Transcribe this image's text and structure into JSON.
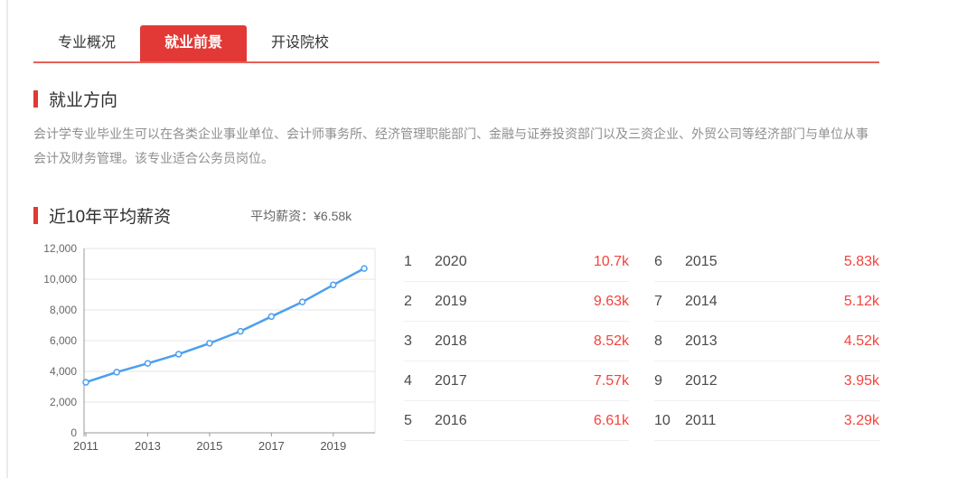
{
  "tabs": {
    "items": [
      {
        "label": "专业概况",
        "active": false
      },
      {
        "label": "就业前景",
        "active": true
      },
      {
        "label": "开设院校",
        "active": false
      }
    ]
  },
  "sections": {
    "employment_direction": {
      "title": "就业方向",
      "description": "会计学专业毕业生可以在各类企业事业单位、会计师事务所、经济管理职能部门、金融与证券投资部门以及三资企业、外贸公司等经济部门与单位从事会计及财务管理。该专业适合公务员岗位。"
    },
    "salary": {
      "title": "近10年平均薪资",
      "average_label": "平均薪资：¥6.58k"
    }
  },
  "chart_data": {
    "type": "line",
    "title": "近10年平均薪资",
    "x": [
      2011,
      2012,
      2013,
      2014,
      2015,
      2016,
      2017,
      2018,
      2019,
      2020
    ],
    "values": [
      3290,
      3950,
      4520,
      5120,
      5830,
      6610,
      7570,
      8520,
      9630,
      10700
    ],
    "xlabel": "",
    "ylabel": "",
    "ylim": [
      0,
      12000
    ],
    "yticks": [
      0,
      2000,
      4000,
      6000,
      8000,
      10000,
      12000
    ],
    "ytick_labels": [
      "0",
      "2,000",
      "4,000",
      "6,000",
      "8,000",
      "10,000",
      "12,000"
    ],
    "xtick_labels": [
      "2011",
      "2013",
      "2015",
      "2017",
      "2019"
    ],
    "grid": true,
    "legend": false,
    "line_color": "#4c9ff0",
    "marker": "open-circle"
  },
  "ranking": {
    "rows": [
      {
        "rank": 1,
        "year": "2020",
        "value": "10.7k"
      },
      {
        "rank": 2,
        "year": "2019",
        "value": "9.63k"
      },
      {
        "rank": 3,
        "year": "2018",
        "value": "8.52k"
      },
      {
        "rank": 4,
        "year": "2017",
        "value": "7.57k"
      },
      {
        "rank": 5,
        "year": "2016",
        "value": "6.61k"
      },
      {
        "rank": 6,
        "year": "2015",
        "value": "5.83k"
      },
      {
        "rank": 7,
        "year": "2014",
        "value": "5.12k"
      },
      {
        "rank": 8,
        "year": "2013",
        "value": "4.52k"
      },
      {
        "rank": 9,
        "year": "2012",
        "value": "3.95k"
      },
      {
        "rank": 10,
        "year": "2011",
        "value": "3.29k"
      }
    ]
  },
  "colors": {
    "accent_red": "#e23936",
    "value_red": "#f4433c",
    "line_blue": "#4c9ff0"
  }
}
